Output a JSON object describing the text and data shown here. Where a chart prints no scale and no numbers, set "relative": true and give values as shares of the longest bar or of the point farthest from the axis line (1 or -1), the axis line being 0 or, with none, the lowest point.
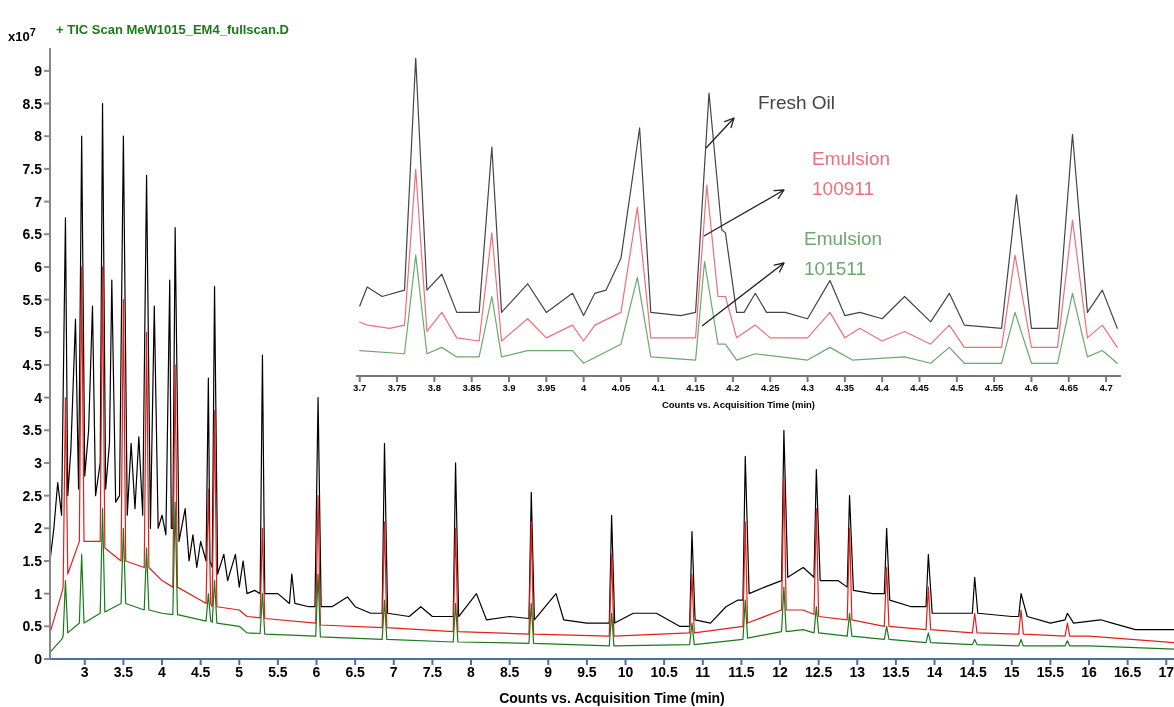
{
  "chart_data": [
    {
      "type": "line",
      "title": "+ TIC Scan MeW1015_EM4_fullscan.D",
      "xlabel": "Counts vs. Acquisition Time (min)",
      "ylabel": "x10$^{7}$",
      "xlim": [
        2.55,
        17.1
      ],
      "xticks": [
        3,
        3.5,
        4,
        4.5,
        5,
        5.5,
        6,
        6.5,
        7,
        7.5,
        8,
        8.5,
        9,
        9.5,
        10,
        10.5,
        11,
        11.5,
        12,
        12.5,
        13,
        13.5,
        14,
        14.5,
        15,
        15.5,
        16,
        16.5,
        17
      ],
      "ylim": [
        0,
        9.35
      ],
      "yticks": [
        0,
        0.5,
        1,
        1.5,
        2,
        2.5,
        3,
        3.5,
        4,
        4.5,
        5,
        5.5,
        6,
        6.5,
        7,
        7.5,
        8,
        8.5,
        9
      ],
      "series": [
        {
          "color": "#000000",
          "x": [
            2.55,
            2.6,
            2.65,
            2.7,
            2.75,
            2.78,
            2.82,
            2.88,
            2.92,
            2.96,
            3.0,
            3.05,
            3.1,
            3.14,
            3.2,
            3.23,
            3.27,
            3.32,
            3.35,
            3.4,
            3.45,
            3.5,
            3.55,
            3.6,
            3.65,
            3.7,
            3.75,
            3.8,
            3.85,
            3.9,
            3.95,
            4.0,
            4.05,
            4.1,
            4.12,
            4.14,
            4.17,
            4.22,
            4.3,
            4.35,
            4.4,
            4.45,
            4.5,
            4.57,
            4.6,
            4.62,
            4.65,
            4.68,
            4.72,
            4.8,
            4.85,
            4.95,
            5.0,
            5.05,
            5.1,
            5.2,
            5.27,
            5.3,
            5.33,
            5.5,
            5.65,
            5.68,
            5.72,
            5.9,
            5.98,
            6.02,
            6.06,
            6.2,
            6.4,
            6.5,
            6.7,
            6.85,
            6.88,
            6.92,
            7.2,
            7.35,
            7.5,
            7.77,
            7.8,
            7.84,
            8.07,
            8.2,
            8.5,
            8.75,
            8.78,
            8.82,
            9.1,
            9.2,
            9.5,
            9.79,
            9.82,
            9.86,
            10.1,
            10.4,
            10.7,
            10.83,
            10.86,
            10.9,
            11.1,
            11.3,
            11.45,
            11.52,
            11.55,
            11.6,
            11.8,
            12.02,
            12.05,
            12.1,
            12.3,
            12.44,
            12.47,
            12.52,
            12.75,
            12.87,
            12.9,
            12.95,
            13.2,
            13.35,
            13.38,
            13.42,
            13.7,
            13.89,
            13.92,
            13.97,
            14.49,
            14.52,
            14.56,
            15.0,
            15.09,
            15.12,
            15.2,
            15.5,
            15.69,
            15.72,
            15.8,
            16.15,
            16.3,
            16.6,
            17.1
          ],
          "values": [
            1.5,
            2.0,
            2.7,
            2.2,
            6.75,
            2.5,
            3.2,
            5.2,
            2.6,
            8.0,
            2.8,
            3.5,
            5.4,
            2.5,
            3.0,
            8.5,
            2.6,
            3.3,
            5.8,
            2.4,
            2.5,
            8.0,
            2.2,
            3.3,
            2.3,
            3.4,
            2.2,
            7.4,
            2.0,
            5.4,
            2.0,
            2.2,
            1.9,
            5.8,
            2.0,
            2.0,
            6.6,
            1.8,
            2.3,
            1.5,
            1.9,
            1.4,
            1.8,
            1.5,
            4.3,
            1.5,
            1.4,
            5.7,
            1.3,
            1.6,
            1.2,
            1.6,
            1.1,
            1.5,
            1.0,
            1.05,
            1.0,
            4.65,
            1.0,
            1.0,
            0.85,
            1.3,
            0.85,
            0.8,
            0.8,
            4.0,
            0.8,
            0.8,
            0.95,
            0.8,
            0.7,
            0.7,
            3.3,
            0.7,
            0.65,
            0.8,
            0.65,
            0.65,
            3.0,
            0.65,
            1.0,
            0.6,
            0.65,
            0.62,
            2.55,
            0.6,
            1.0,
            0.6,
            0.55,
            0.55,
            2.2,
            0.55,
            0.7,
            0.7,
            0.5,
            0.5,
            1.95,
            0.6,
            0.55,
            0.8,
            0.9,
            0.9,
            3.1,
            1.0,
            1.1,
            1.2,
            3.5,
            1.25,
            1.4,
            1.25,
            2.9,
            1.2,
            1.2,
            1.1,
            2.5,
            1.05,
            1.0,
            1.0,
            2.0,
            0.9,
            0.8,
            0.8,
            1.6,
            0.7,
            0.7,
            1.25,
            0.7,
            0.65,
            0.65,
            1.0,
            0.65,
            0.55,
            0.6,
            0.7,
            0.55,
            0.6,
            0.55,
            0.45,
            0.45
          ]
        },
        {
          "color": "#e0201c",
          "x": [
            2.55,
            2.7,
            2.72,
            2.75,
            2.78,
            2.93,
            2.96,
            2.99,
            3.2,
            3.23,
            3.26,
            3.47,
            3.5,
            3.53,
            3.77,
            3.8,
            3.83,
            4.0,
            4.14,
            4.17,
            4.2,
            4.5,
            4.57,
            4.6,
            4.63,
            4.65,
            4.68,
            4.71,
            5.0,
            5.1,
            5.27,
            5.3,
            5.33,
            5.99,
            6.02,
            6.05,
            6.85,
            6.88,
            6.91,
            7.77,
            7.8,
            7.83,
            8.75,
            8.78,
            8.81,
            9.79,
            9.82,
            9.85,
            10.83,
            10.86,
            10.89,
            11.52,
            11.55,
            11.58,
            12.02,
            12.05,
            12.08,
            12.3,
            12.44,
            12.47,
            12.5,
            12.87,
            12.9,
            12.93,
            13.35,
            13.38,
            13.41,
            13.89,
            13.92,
            13.95,
            14.49,
            14.52,
            14.55,
            15.09,
            15.12,
            15.15,
            15.69,
            15.72,
            15.75,
            16.0,
            17.1
          ],
          "values": [
            0.4,
            1.0,
            1.1,
            4.0,
            1.3,
            1.8,
            6.0,
            1.8,
            1.8,
            6.0,
            1.7,
            1.5,
            5.5,
            1.5,
            1.4,
            5.0,
            1.4,
            1.2,
            1.1,
            4.5,
            1.1,
            0.9,
            0.85,
            2.6,
            0.85,
            0.8,
            3.8,
            0.8,
            0.75,
            0.65,
            0.63,
            2.0,
            0.62,
            0.55,
            2.5,
            0.52,
            0.48,
            2.1,
            0.48,
            0.42,
            2.0,
            0.42,
            0.38,
            2.1,
            0.38,
            0.35,
            1.6,
            0.35,
            0.4,
            1.3,
            0.4,
            0.5,
            2.1,
            0.55,
            0.75,
            2.8,
            0.75,
            0.75,
            0.68,
            2.3,
            0.65,
            0.6,
            2.0,
            0.6,
            0.5,
            1.4,
            0.5,
            0.45,
            1.1,
            0.45,
            0.4,
            0.7,
            0.4,
            0.38,
            0.75,
            0.38,
            0.35,
            0.55,
            0.35,
            0.35,
            0.25
          ]
        },
        {
          "color": "#1a7a1a",
          "x": [
            2.55,
            2.7,
            2.72,
            2.75,
            2.78,
            2.93,
            2.96,
            2.99,
            3.2,
            3.23,
            3.26,
            3.47,
            3.5,
            3.53,
            3.77,
            3.8,
            3.83,
            4.0,
            4.14,
            4.17,
            4.2,
            4.5,
            4.57,
            4.6,
            4.63,
            4.65,
            4.68,
            4.71,
            5.0,
            5.1,
            5.27,
            5.3,
            5.33,
            5.99,
            6.02,
            6.05,
            6.85,
            6.88,
            6.91,
            7.77,
            7.8,
            7.83,
            8.75,
            8.78,
            8.81,
            9.79,
            9.82,
            9.85,
            10.83,
            10.86,
            10.89,
            11.52,
            11.55,
            11.58,
            12.02,
            12.05,
            12.08,
            12.3,
            12.44,
            12.47,
            12.5,
            12.87,
            12.9,
            12.93,
            13.35,
            13.38,
            13.41,
            13.89,
            13.92,
            13.95,
            14.49,
            14.52,
            14.55,
            15.09,
            15.12,
            15.15,
            15.69,
            15.72,
            15.75,
            16.0,
            17.1
          ],
          "values": [
            0.1,
            0.3,
            0.35,
            1.2,
            0.4,
            0.55,
            1.6,
            0.55,
            0.7,
            2.3,
            0.72,
            0.85,
            2.0,
            0.85,
            0.75,
            1.7,
            0.75,
            0.7,
            0.68,
            2.4,
            0.68,
            0.6,
            0.58,
            1.0,
            0.58,
            0.56,
            1.2,
            0.55,
            0.5,
            0.4,
            0.39,
            1.0,
            0.38,
            0.35,
            1.3,
            0.34,
            0.3,
            0.9,
            0.3,
            0.26,
            0.85,
            0.26,
            0.24,
            0.85,
            0.24,
            0.2,
            0.7,
            0.2,
            0.22,
            0.55,
            0.22,
            0.3,
            0.9,
            0.32,
            0.42,
            1.1,
            0.42,
            0.45,
            0.4,
            0.8,
            0.4,
            0.35,
            0.7,
            0.35,
            0.3,
            0.5,
            0.3,
            0.25,
            0.4,
            0.25,
            0.22,
            0.3,
            0.22,
            0.2,
            0.3,
            0.2,
            0.2,
            0.28,
            0.2,
            0.2,
            0.15
          ]
        }
      ]
    },
    {
      "type": "line",
      "relative": true,
      "xlabel": "Counts vs. Acquisition Time (min)",
      "xlim": [
        3.695,
        4.72
      ],
      "xticks": [
        3.7,
        3.75,
        3.8,
        3.85,
        3.9,
        3.95,
        4,
        4.05,
        4.1,
        4.15,
        4.2,
        4.25,
        4.3,
        4.35,
        4.4,
        4.45,
        4.5,
        4.55,
        4.6,
        4.65,
        4.7
      ],
      "series": [
        {
          "name": "Fresh Oil",
          "color": "#444444",
          "x": [
            3.7,
            3.71,
            3.73,
            3.76,
            3.775,
            3.79,
            3.81,
            3.83,
            3.86,
            3.877,
            3.89,
            3.925,
            3.95,
            3.985,
            4.0,
            4.015,
            4.03,
            4.05,
            4.075,
            4.09,
            4.13,
            4.15,
            4.168,
            4.185,
            4.19,
            4.205,
            4.215,
            4.23,
            4.245,
            4.27,
            4.3,
            4.33,
            4.35,
            4.37,
            4.4,
            4.43,
            4.465,
            4.49,
            4.51,
            4.56,
            4.58,
            4.6,
            4.635,
            4.655,
            4.675,
            4.695,
            4.715
          ],
          "values": [
            0.22,
            0.28,
            0.25,
            0.27,
            1.0,
            0.27,
            0.32,
            0.2,
            0.2,
            0.72,
            0.2,
            0.29,
            0.2,
            0.26,
            0.19,
            0.26,
            0.27,
            0.37,
            0.78,
            0.2,
            0.19,
            0.2,
            0.89,
            0.46,
            0.45,
            0.2,
            0.2,
            0.26,
            0.2,
            0.2,
            0.18,
            0.3,
            0.19,
            0.2,
            0.18,
            0.25,
            0.17,
            0.26,
            0.16,
            0.15,
            0.57,
            0.15,
            0.15,
            0.76,
            0.2,
            0.27,
            0.15
          ]
        },
        {
          "name": "Emulsion 100911",
          "color": "#ee6f7a",
          "x": [
            3.7,
            3.71,
            3.74,
            3.76,
            3.775,
            3.79,
            3.81,
            3.83,
            3.86,
            3.877,
            3.89,
            3.925,
            3.95,
            3.985,
            4.0,
            4.015,
            4.05,
            4.072,
            4.09,
            4.15,
            4.165,
            4.18,
            4.19,
            4.205,
            4.23,
            4.25,
            4.3,
            4.33,
            4.35,
            4.37,
            4.4,
            4.43,
            4.465,
            4.49,
            4.51,
            4.56,
            4.578,
            4.6,
            4.635,
            4.655,
            4.675,
            4.695,
            4.715
          ],
          "values": [
            0.17,
            0.16,
            0.15,
            0.16,
            0.65,
            0.14,
            0.2,
            0.12,
            0.11,
            0.45,
            0.11,
            0.18,
            0.12,
            0.16,
            0.11,
            0.16,
            0.2,
            0.53,
            0.12,
            0.12,
            0.6,
            0.25,
            0.25,
            0.12,
            0.16,
            0.12,
            0.12,
            0.2,
            0.12,
            0.15,
            0.11,
            0.14,
            0.1,
            0.16,
            0.09,
            0.09,
            0.38,
            0.09,
            0.09,
            0.49,
            0.12,
            0.16,
            0.09
          ]
        },
        {
          "name": "Emulsion 101511",
          "color": "#6aaa6a",
          "x": [
            3.7,
            3.76,
            3.775,
            3.79,
            3.81,
            3.83,
            3.86,
            3.877,
            3.89,
            3.925,
            3.985,
            4.0,
            4.05,
            4.072,
            4.09,
            4.15,
            4.162,
            4.18,
            4.19,
            4.205,
            4.23,
            4.3,
            4.33,
            4.36,
            4.43,
            4.465,
            4.49,
            4.51,
            4.56,
            4.578,
            4.6,
            4.635,
            4.655,
            4.675,
            4.695,
            4.715
          ],
          "values": [
            0.08,
            0.07,
            0.38,
            0.07,
            0.09,
            0.06,
            0.06,
            0.25,
            0.06,
            0.08,
            0.08,
            0.04,
            0.1,
            0.31,
            0.06,
            0.05,
            0.36,
            0.1,
            0.1,
            0.05,
            0.07,
            0.05,
            0.09,
            0.05,
            0.06,
            0.04,
            0.09,
            0.04,
            0.04,
            0.2,
            0.04,
            0.04,
            0.26,
            0.06,
            0.08,
            0.04
          ]
        }
      ]
    }
  ]
}
